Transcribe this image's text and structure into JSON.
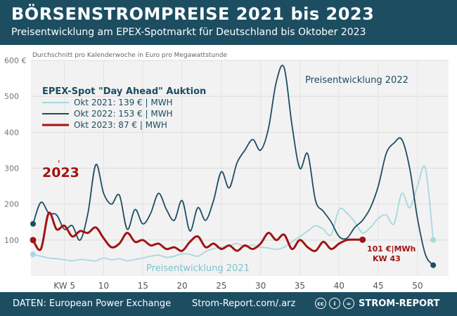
{
  "header": {
    "title": "BÖRSENSTROMPREISE 2021 bis 2023",
    "subtitle": "Preisentwicklung am EPEX-Spotmarkt für Deutschland bis Oktober 2023"
  },
  "footer": {
    "source": "DATEN: European Power Exchange",
    "link": "Strom-Report.com/.arz",
    "brand": "STROM-REPORT",
    "license_icons": [
      "cc-icon",
      "by-icon",
      "nd-icon"
    ]
  },
  "chart_data": {
    "type": "line",
    "note": "Durchschnitt pro Kalenderwoche in Euro pro Megawattstunde",
    "legend_title": "EPEX-Spot \"Day Ahead\" Auktion",
    "legend_placement": "top-left",
    "xlim": [
      0,
      53
    ],
    "ylim": [
      0,
      600
    ],
    "x_ticks": [
      {
        "value": 5,
        "label": "KW 5"
      },
      {
        "value": 10,
        "label": "10"
      },
      {
        "value": 15,
        "label": "15"
      },
      {
        "value": 20,
        "label": "20"
      },
      {
        "value": 25,
        "label": "25"
      },
      {
        "value": 30,
        "label": "30"
      },
      {
        "value": 35,
        "label": "35"
      },
      {
        "value": 40,
        "label": "40"
      },
      {
        "value": 45,
        "label": "45"
      },
      {
        "value": 50,
        "label": "50"
      }
    ],
    "y_ticks": [
      {
        "value": 100,
        "label": "100"
      },
      {
        "value": 200,
        "label": "200"
      },
      {
        "value": 300,
        "label": "300"
      },
      {
        "value": 400,
        "label": "400"
      },
      {
        "value": 500,
        "label": "500"
      },
      {
        "value": 600,
        "label": "600 €"
      }
    ],
    "grid": true,
    "series": [
      {
        "name": "Okt 2021: 139 € | MWH",
        "color": "#a9d7df",
        "stroke_width": 1.8,
        "end_markers": true,
        "x": [
          1,
          2,
          3,
          4,
          5,
          6,
          7,
          8,
          9,
          10,
          11,
          12,
          13,
          14,
          15,
          16,
          17,
          18,
          19,
          20,
          21,
          22,
          23,
          24,
          25,
          26,
          27,
          28,
          29,
          30,
          31,
          32,
          33,
          34,
          35,
          36,
          37,
          38,
          39,
          40,
          41,
          42,
          43,
          44,
          45,
          46,
          47,
          48,
          49,
          50,
          51,
          52
        ],
        "values": [
          60,
          55,
          50,
          48,
          45,
          42,
          46,
          44,
          42,
          50,
          45,
          48,
          42,
          46,
          50,
          55,
          58,
          52,
          55,
          62,
          60,
          55,
          68,
          76,
          80,
          85,
          90,
          82,
          86,
          80,
          78,
          74,
          80,
          95,
          110,
          125,
          140,
          130,
          115,
          185,
          175,
          150,
          120,
          135,
          160,
          170,
          145,
          230,
          190,
          250,
          300,
          100
        ]
      },
      {
        "name": "Okt 2022: 153 € | MWH",
        "color": "#1c4d61",
        "stroke_width": 1.8,
        "end_markers": true,
        "x": [
          1,
          2,
          3,
          4,
          5,
          6,
          7,
          8,
          9,
          10,
          11,
          12,
          13,
          14,
          15,
          16,
          17,
          18,
          19,
          20,
          21,
          22,
          23,
          24,
          25,
          26,
          27,
          28,
          29,
          30,
          31,
          32,
          33,
          34,
          35,
          36,
          37,
          38,
          39,
          40,
          41,
          42,
          43,
          44,
          45,
          46,
          47,
          48,
          49,
          50,
          51,
          52
        ],
        "values": [
          145,
          205,
          175,
          170,
          130,
          140,
          100,
          175,
          310,
          230,
          200,
          225,
          130,
          185,
          145,
          175,
          230,
          185,
          155,
          210,
          125,
          190,
          155,
          210,
          290,
          245,
          315,
          350,
          380,
          350,
          410,
          540,
          580,
          420,
          300,
          340,
          210,
          180,
          150,
          110,
          105,
          135,
          155,
          190,
          250,
          340,
          370,
          380,
          300,
          160,
          60,
          30
        ]
      },
      {
        "name": "Okt 2023: 87 € | MWH",
        "color": "#a01414",
        "stroke_width": 3,
        "end_markers": true,
        "x": [
          1,
          2,
          3,
          4,
          5,
          6,
          7,
          8,
          9,
          10,
          11,
          12,
          13,
          14,
          15,
          16,
          17,
          18,
          19,
          20,
          21,
          22,
          23,
          24,
          25,
          26,
          27,
          28,
          29,
          30,
          31,
          32,
          33,
          34,
          35,
          36,
          37,
          38,
          39,
          40,
          41,
          42,
          43
        ],
        "values": [
          100,
          75,
          175,
          130,
          140,
          110,
          125,
          120,
          135,
          105,
          80,
          90,
          120,
          95,
          100,
          85,
          90,
          75,
          80,
          70,
          95,
          110,
          80,
          90,
          75,
          85,
          70,
          85,
          75,
          90,
          120,
          100,
          115,
          75,
          100,
          80,
          70,
          95,
          75,
          90,
          100,
          101,
          101
        ]
      }
    ],
    "annotations": [
      {
        "text": "2023",
        "x": 3.5,
        "y": 270,
        "color": "#a01414"
      },
      {
        "text": "Preisentwicklung 2022",
        "x": 34,
        "y": 555,
        "color": "#1c4d61"
      },
      {
        "text": "Preisentwicklung 2021",
        "x": 23,
        "y": 25,
        "color": "#7fc2cf"
      },
      {
        "text": "101 €|MWh",
        "x": 43,
        "y": 60,
        "color": "#a01414"
      },
      {
        "text": "KW 43",
        "x": 43,
        "y": 30,
        "color": "#a01414"
      }
    ]
  }
}
